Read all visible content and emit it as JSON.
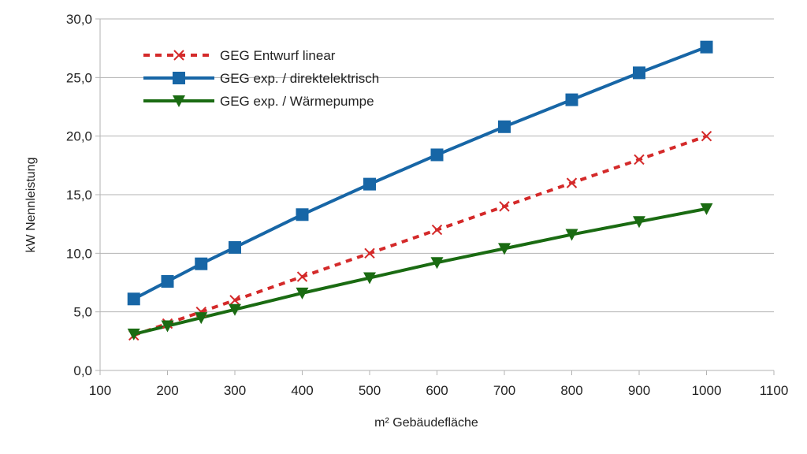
{
  "chart_data": {
    "type": "line",
    "xlabel": "m² Gebäudefläche",
    "ylabel": "kW Nennleistung",
    "xlim": [
      100,
      1100
    ],
    "ylim": [
      0,
      30
    ],
    "x_ticks": [
      "100",
      "200",
      "300",
      "400",
      "500",
      "600",
      "700",
      "800",
      "900",
      "1000",
      "1100"
    ],
    "y_ticks": [
      "0,0",
      "5,0",
      "10,0",
      "15,0",
      "20,0",
      "25,0",
      "30,0"
    ],
    "grid": "horizontal",
    "legend_position": "top-left",
    "series": [
      {
        "name": "GEG Entwurf linear",
        "color": "#d42a2a",
        "line_style": "dashed",
        "marker": "x",
        "x": [
          150,
          200,
          250,
          300,
          400,
          500,
          600,
          700,
          800,
          900,
          1000
        ],
        "values": [
          3.0,
          4.0,
          5.0,
          6.0,
          8.0,
          10.0,
          12.0,
          14.0,
          16.0,
          18.0,
          20.0
        ]
      },
      {
        "name": "GEG exp. / direktelektrisch",
        "color": "#1766a6",
        "line_style": "solid",
        "marker": "square",
        "x": [
          150,
          200,
          250,
          300,
          400,
          500,
          600,
          700,
          800,
          900,
          1000
        ],
        "values": [
          6.1,
          7.6,
          9.1,
          10.5,
          13.3,
          15.9,
          18.4,
          20.8,
          23.1,
          25.4,
          27.6
        ]
      },
      {
        "name": "GEG exp. / Wärmepumpe",
        "color": "#1a6b12",
        "line_style": "solid",
        "marker": "triangle-down",
        "x": [
          150,
          200,
          250,
          300,
          400,
          500,
          600,
          700,
          800,
          900,
          1000
        ],
        "values": [
          3.1,
          3.8,
          4.5,
          5.2,
          6.6,
          7.9,
          9.2,
          10.4,
          11.6,
          12.7,
          13.8
        ]
      }
    ]
  }
}
